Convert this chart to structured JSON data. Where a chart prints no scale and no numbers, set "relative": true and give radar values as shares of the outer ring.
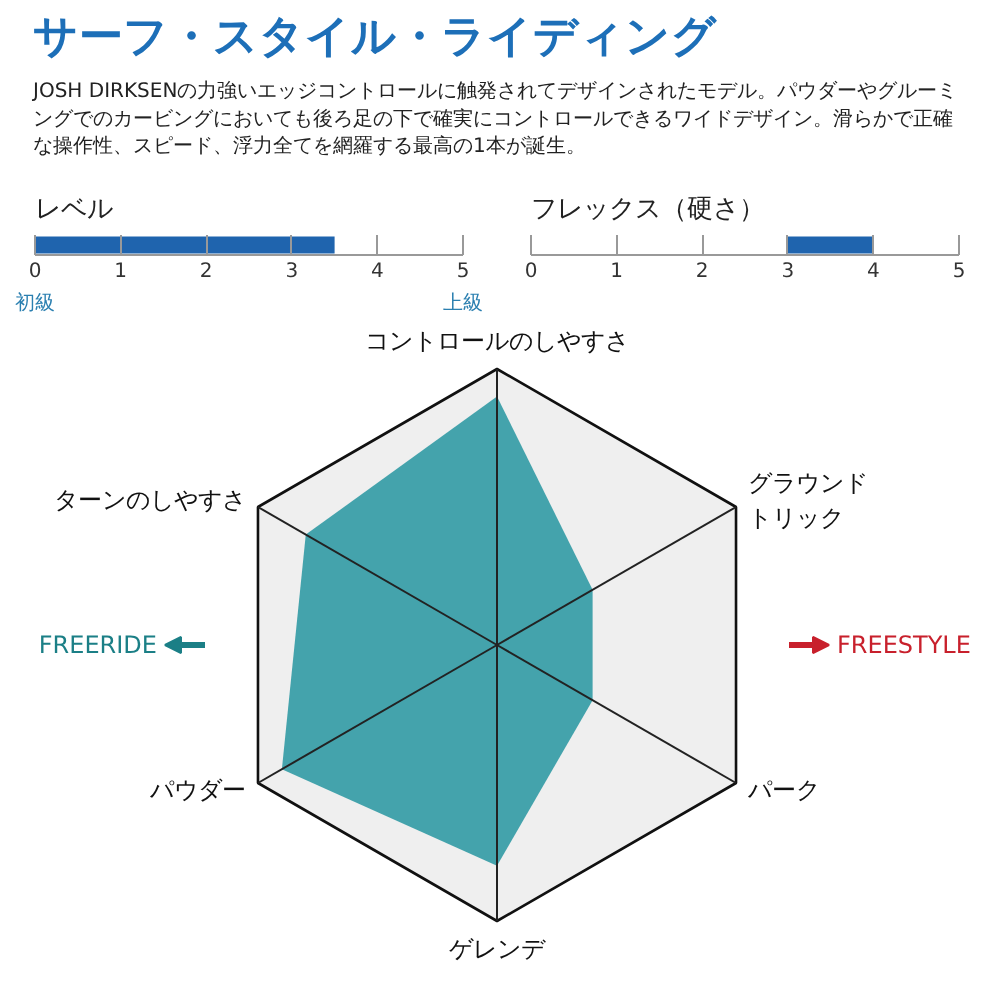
{
  "chart_data": [
    {
      "type": "other",
      "title": "サーフ・スタイル・ライディング",
      "subtitle": "JOSH DIRKSENの力強いエッジコントロールに触発されてデザインされたモデル。パウダーやグルーミングでのカービングにおいても後ろ足の下で確実にコントロールできるワイドデザイン。滑らかで正確な操作性、スピード、浮力全てを網羅する最高の1本が誕生。"
    },
    {
      "type": "bar",
      "orientation": "horizontal",
      "title": "レベル",
      "categories": [
        null
      ],
      "values": [
        3.5
      ],
      "color": "#1f64ae",
      "xlim": [
        0,
        5
      ],
      "xticks": [
        0,
        1,
        2,
        3,
        4,
        5
      ],
      "annotations": [
        "初級",
        "上級"
      ]
    },
    {
      "type": "bar",
      "orientation": "horizontal",
      "title": "フレックス（硬さ）",
      "categories": [
        null
      ],
      "base": [
        3
      ],
      "values": [
        1
      ],
      "color": "#1f64ae",
      "xlim": [
        0,
        5
      ],
      "xticks": [
        0,
        1,
        2,
        3,
        4,
        5
      ]
    },
    {
      "type": "radar",
      "relative": true,
      "categories": [
        "コントロールのしやすさ",
        "グラウンドトリック",
        "パーク",
        "ゲレンデ",
        "パウダー",
        "ターンのしやすさ"
      ],
      "series": [
        {
          "color": "#3a9ea8",
          "values": [
            0.9,
            0.4,
            0.4,
            0.8,
            0.9,
            0.8
          ]
        }
      ],
      "annotations": [
        "FREERIDE",
        "FREESTYLE"
      ]
    }
  ]
}
